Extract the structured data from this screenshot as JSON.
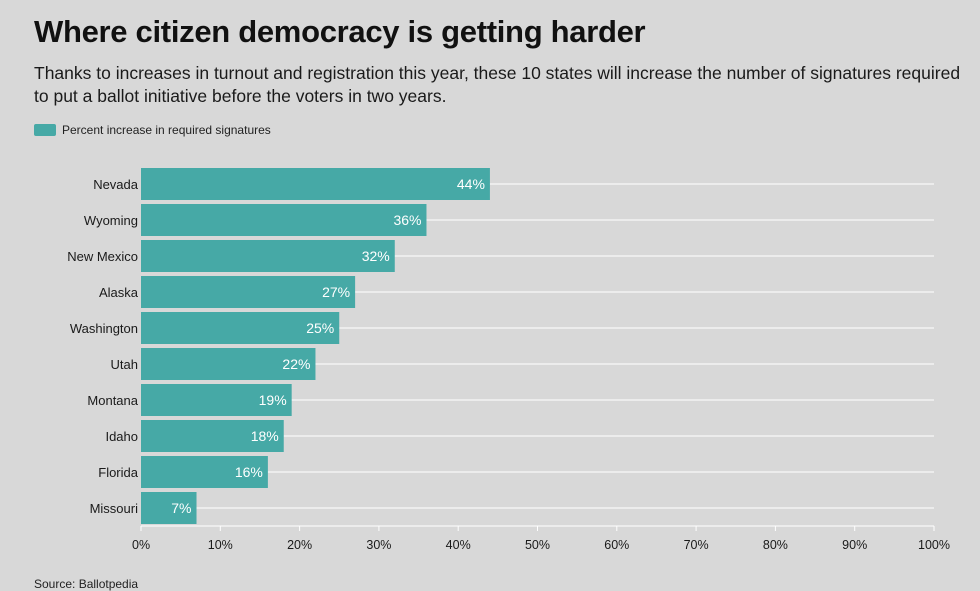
{
  "header": {
    "title": "Where citizen democracy is getting harder",
    "subtitle": "Thanks to increases in turnout and registration this year, these 10 states will increase the number of signatures required to put a ballot initiative before the voters in two years."
  },
  "footer": {
    "source": "Source: Ballotpedia"
  },
  "colors": {
    "bar": "#46a9a6",
    "background": "#d8d8d8",
    "gridline": "#ffffff"
  },
  "chart_data": {
    "type": "bar",
    "orientation": "horizontal",
    "title": "Where citizen democracy is getting harder",
    "legend": [
      "Percent increase in required signatures"
    ],
    "legend_position": "top-left",
    "categories": [
      "Nevada",
      "Wyoming",
      "New Mexico",
      "Alaska",
      "Washington",
      "Utah",
      "Montana",
      "Idaho",
      "Florida",
      "Missouri"
    ],
    "series": [
      {
        "name": "Percent increase in required signatures",
        "values": [
          44,
          36,
          32,
          27,
          25,
          22,
          19,
          18,
          16,
          7
        ],
        "labels": [
          "44%",
          "36%",
          "32%",
          "27%",
          "25%",
          "22%",
          "19%",
          "18%",
          "16%",
          "7%"
        ]
      }
    ],
    "xlim": [
      0,
      100
    ],
    "xticks": [
      0,
      10,
      20,
      30,
      40,
      50,
      60,
      70,
      80,
      90,
      100
    ],
    "xtick_labels": [
      "0%",
      "10%",
      "20%",
      "30%",
      "40%",
      "50%",
      "60%",
      "70%",
      "80%",
      "90%",
      "100%"
    ],
    "xlabel": "",
    "ylabel": "",
    "grid": true
  }
}
